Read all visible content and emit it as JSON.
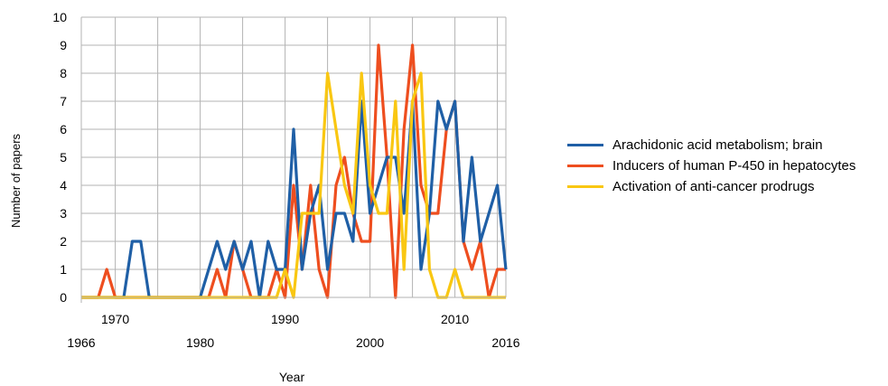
{
  "chart_data": {
    "type": "line",
    "title": "",
    "xlabel": "Year",
    "ylabel": "Number of papers",
    "xlim": [
      1966,
      2016
    ],
    "ylim": [
      0,
      10
    ],
    "grid": true,
    "legend_position": "right",
    "y_ticks": [
      "0",
      "1",
      "2",
      "3",
      "4",
      "5",
      "6",
      "7",
      "8",
      "9",
      "10"
    ],
    "x_ticks_upper": [
      {
        "label": "1970",
        "x": 1970
      },
      {
        "label": "1990",
        "x": 1990
      },
      {
        "label": "2010",
        "x": 2010
      }
    ],
    "x_ticks_lower": [
      {
        "label": "1966",
        "x": 1966
      },
      {
        "label": "1980",
        "x": 1980
      },
      {
        "label": "2000",
        "x": 2000
      },
      {
        "label": "2016",
        "x": 2016
      }
    ],
    "x": [
      1966,
      1967,
      1968,
      1969,
      1970,
      1971,
      1972,
      1973,
      1974,
      1975,
      1976,
      1977,
      1978,
      1979,
      1980,
      1981,
      1982,
      1983,
      1984,
      1985,
      1986,
      1987,
      1988,
      1989,
      1990,
      1991,
      1992,
      1993,
      1994,
      1995,
      1996,
      1997,
      1998,
      1999,
      2000,
      2001,
      2002,
      2003,
      2004,
      2005,
      2006,
      2007,
      2008,
      2009,
      2010,
      2011,
      2012,
      2013,
      2014,
      2015,
      2016
    ],
    "series": [
      {
        "name": "Arachidonic acid metabolism; brain",
        "color": "#1f5fa6",
        "values": [
          0,
          0,
          0,
          0,
          0,
          0,
          2,
          2,
          0,
          0,
          0,
          0,
          0,
          0,
          0,
          1,
          2,
          1,
          2,
          1,
          2,
          0,
          2,
          1,
          1,
          6,
          1,
          3,
          4,
          1,
          3,
          3,
          2,
          7,
          3,
          4,
          5,
          5,
          3,
          7,
          1,
          3,
          7,
          6,
          7,
          2,
          5,
          2,
          3,
          4,
          1
        ]
      },
      {
        "name": "Inducers of human P-450 in hepatocytes",
        "color": "#ee4e1f",
        "values": [
          0,
          0,
          0,
          1,
          0,
          0,
          0,
          0,
          0,
          0,
          0,
          0,
          0,
          0,
          0,
          0,
          1,
          0,
          2,
          1,
          0,
          0,
          0,
          1,
          0,
          4,
          1,
          4,
          1,
          0,
          4,
          5,
          3,
          2,
          2,
          9,
          5,
          0,
          6,
          9,
          4,
          3,
          3,
          6,
          7,
          2,
          1,
          2,
          0,
          1,
          1
        ]
      },
      {
        "name": "Activation of anti-cancer prodrugs",
        "color": "#f9c712",
        "values": [
          0,
          0,
          0,
          0,
          0,
          0,
          0,
          0,
          0,
          0,
          0,
          0,
          0,
          0,
          0,
          0,
          0,
          0,
          0,
          0,
          0,
          0,
          0,
          0,
          1,
          0,
          3,
          3,
          3,
          8,
          6,
          4,
          3,
          8,
          4,
          3,
          3,
          7,
          1,
          7,
          8,
          1,
          0,
          0,
          1,
          0,
          0,
          0,
          0,
          0,
          0
        ]
      }
    ]
  }
}
